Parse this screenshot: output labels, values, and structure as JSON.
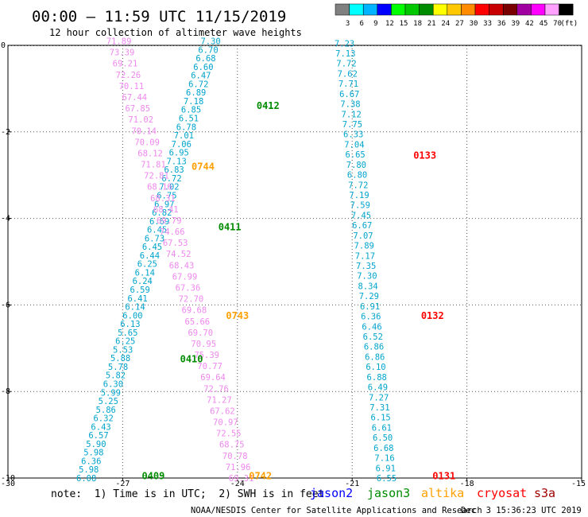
{
  "header": {
    "title": "00:00 – 11:59 UTC 11/15/2019",
    "subtitle": "12 hour collection of altimeter wave heights"
  },
  "color_scale": {
    "colors": [
      "#808080",
      "#00ffff",
      "#00b4ff",
      "#0000ff",
      "#00ff00",
      "#00c800",
      "#008c00",
      "#ffff00",
      "#ffc800",
      "#ff8c00",
      "#ff0000",
      "#c80000",
      "#780000",
      "#a000a0",
      "#ff00ff",
      "#ffa0ff",
      "#000000"
    ],
    "labels": [
      "3",
      "6",
      "9",
      "12",
      "15",
      "18",
      "21",
      "24",
      "27",
      "30",
      "33",
      "36",
      "39",
      "42",
      "45",
      "70",
      "(ft)"
    ]
  },
  "chart_data": {
    "type": "scatter",
    "x_ticks": [
      "-30",
      "-27",
      "-24",
      "-21",
      "-18",
      "-15"
    ],
    "y_ticks": [
      "0",
      "-2",
      "-4",
      "-6",
      "-8",
      "-10"
    ],
    "xlim": [
      -30,
      -15
    ],
    "ylim": [
      -10,
      0
    ],
    "tracks": [
      {
        "name": "0409",
        "satellite": "jason3",
        "color": "#008c00",
        "label_lon": -26.5,
        "label_lat": -9.95
      },
      {
        "name": "0410",
        "satellite": "jason3",
        "color": "#008c00",
        "label_lon": -25.5,
        "label_lat": -7.25
      },
      {
        "name": "0411",
        "satellite": "jason3",
        "color": "#008c00",
        "label_lon": -24.5,
        "label_lat": -4.2
      },
      {
        "name": "0412",
        "satellite": "jason3",
        "color": "#008c00",
        "label_lon": -23.5,
        "label_lat": -1.4
      },
      {
        "name": "0742",
        "satellite": "altika",
        "color": "#ffa000",
        "label_lon": -23.7,
        "label_lat": -9.95
      },
      {
        "name": "0743",
        "satellite": "altika",
        "color": "#ffa000",
        "label_lon": -24.3,
        "label_lat": -6.25
      },
      {
        "name": "0744",
        "satellite": "altika",
        "color": "#ffa000",
        "label_lon": -25.2,
        "label_lat": -2.8
      },
      {
        "name": "0131",
        "satellite": "cryosat",
        "color": "#ff0000",
        "label_lon": -18.9,
        "label_lat": -9.95
      },
      {
        "name": "0132",
        "satellite": "cryosat",
        "color": "#ff0000",
        "label_lon": -19.2,
        "label_lat": -6.25
      },
      {
        "name": "0133",
        "satellite": "cryosat",
        "color": "#ff0000",
        "label_lon": -19.4,
        "label_lat": -2.55
      }
    ],
    "series": [
      {
        "color": "#00a4cc",
        "lon_start": -24.7,
        "lat_start": 0.1,
        "lon_end": -27.95,
        "lat_end": -10.0,
        "values": [
          "7.30",
          "6.70",
          "6.68",
          "6.60",
          "6.47",
          "6.72",
          "6.89",
          "7.18",
          "6.85",
          "6.51",
          "6.78",
          "7.01",
          "7.06",
          "6.95",
          "7.13",
          "6.83",
          "6.72",
          "7.02",
          "6.75",
          "6.97",
          "6.82",
          "6.69",
          "6.45",
          "6.73",
          "6.45",
          "6.44",
          "6.25",
          "6.14",
          "6.24",
          "6.59",
          "6.41",
          "6.14",
          "6.00",
          "6.13",
          "5.65",
          "6.25",
          "5.53",
          "5.88",
          "5.78",
          "5.82",
          "6.30",
          "5.99",
          "5.25",
          "5.86",
          "6.32",
          "6.43",
          "6.57",
          "5.90",
          "5.98",
          "6.36",
          "5.98",
          "6.08"
        ]
      },
      {
        "color": "#ee88ee",
        "lon_start": -27.1,
        "lat_start": 0.1,
        "lon_end": -23.9,
        "lat_end": -10.0,
        "values": [
          "71.89",
          "73.39",
          "69.21",
          "72.26",
          "70.11",
          "67.44",
          "67.85",
          "71.02",
          "70.14",
          "70.09",
          "68.12",
          "71.81",
          "72.81",
          "68.16",
          "68.31",
          "68.41",
          "69.79",
          "74.66",
          "67.53",
          "74.52",
          "68.43",
          "67.99",
          "67.36",
          "72.70",
          "69.68",
          "65.66",
          "69.70",
          "70.95",
          "75.39",
          "70.77",
          "69.64",
          "72.76",
          "71.27",
          "67.62",
          "70.97",
          "72.55",
          "68.75",
          "70.78",
          "71.96",
          "69.31"
        ]
      },
      {
        "color": "#00a4cc",
        "lon_start": -21.2,
        "lat_start": 0.05,
        "lon_end": -20.1,
        "lat_end": -10.0,
        "values": [
          "7.23",
          "7.13",
          "7.72",
          "7.62",
          "7.71",
          "6.67",
          "7.38",
          "7.12",
          "7.75",
          "6.33",
          "7.04",
          "6.65",
          "7.80",
          "6.80",
          "7.72",
          "7.19",
          "7.59",
          "7.45",
          "6.67",
          "7.07",
          "7.89",
          "7.17",
          "7.35",
          "7.30",
          "8.34",
          "7.29",
          "6.91",
          "6.36",
          "6.46",
          "6.52",
          "6.86",
          "6.86",
          "6.10",
          "6.88",
          "6.49",
          "7.27",
          "7.31",
          "6.15",
          "6.61",
          "6.50",
          "6.68",
          "7.16",
          "6.91",
          "6.55"
        ]
      }
    ]
  },
  "footer": {
    "note": "note:  1) Time is in UTC;  2) SWH is in feet",
    "satellites": [
      {
        "name": "jason2",
        "color": "#0000ff"
      },
      {
        "name": "jason3",
        "color": "#008c00"
      },
      {
        "name": "altika",
        "color": "#ffa000"
      },
      {
        "name": "cryosat",
        "color": "#ff0000"
      },
      {
        "name": "s3a",
        "color": "#a00000"
      }
    ],
    "credit": "NOAA/NESDIS Center for Satellite Applications and Research",
    "timestamp": "Dec  3 15:36:23 UTC 2019"
  }
}
